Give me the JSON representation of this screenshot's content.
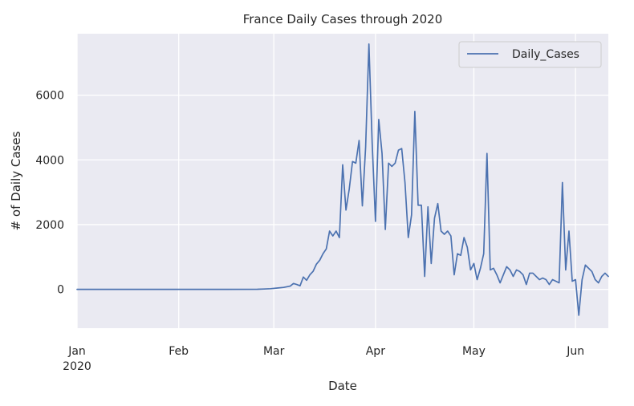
{
  "chart_data": {
    "type": "line",
    "title": "France Daily Cases through 2020",
    "xlabel": "Date",
    "ylabel": "# of Daily Cases",
    "x_range": [
      "2020-01-01",
      "2020-06-11"
    ],
    "ylim": [
      -1200,
      7900
    ],
    "x_ticks": [
      {
        "date": "2020-01-01",
        "label": "Jan",
        "sublabel": "2020"
      },
      {
        "date": "2020-02-01",
        "label": "Feb",
        "sublabel": ""
      },
      {
        "date": "2020-03-01",
        "label": "Mar",
        "sublabel": ""
      },
      {
        "date": "2020-04-01",
        "label": "Apr",
        "sublabel": ""
      },
      {
        "date": "2020-05-01",
        "label": "May",
        "sublabel": ""
      },
      {
        "date": "2020-06-01",
        "label": "Jun",
        "sublabel": ""
      }
    ],
    "y_ticks": [
      0,
      2000,
      4000,
      6000
    ],
    "y_tick_labels": [
      "0",
      "2000",
      "4000",
      "6000"
    ],
    "grid": true,
    "legend_position": "top-right",
    "series": [
      {
        "name": "Daily_Cases",
        "color": "#4c72b0",
        "x": [
          "2020-01-01",
          "2020-01-15",
          "2020-02-01",
          "2020-02-15",
          "2020-02-25",
          "2020-02-27",
          "2020-02-29",
          "2020-03-02",
          "2020-03-04",
          "2020-03-06",
          "2020-03-07",
          "2020-03-08",
          "2020-03-09",
          "2020-03-10",
          "2020-03-11",
          "2020-03-12",
          "2020-03-13",
          "2020-03-14",
          "2020-03-15",
          "2020-03-16",
          "2020-03-17",
          "2020-03-18",
          "2020-03-19",
          "2020-03-20",
          "2020-03-21",
          "2020-03-22",
          "2020-03-23",
          "2020-03-24",
          "2020-03-25",
          "2020-03-26",
          "2020-03-27",
          "2020-03-28",
          "2020-03-29",
          "2020-03-30",
          "2020-03-31",
          "2020-04-01",
          "2020-04-02",
          "2020-04-03",
          "2020-04-04",
          "2020-04-05",
          "2020-04-06",
          "2020-04-07",
          "2020-04-08",
          "2020-04-09",
          "2020-04-10",
          "2020-04-11",
          "2020-04-12",
          "2020-04-13",
          "2020-04-14",
          "2020-04-15",
          "2020-04-16",
          "2020-04-17",
          "2020-04-18",
          "2020-04-19",
          "2020-04-20",
          "2020-04-21",
          "2020-04-22",
          "2020-04-23",
          "2020-04-24",
          "2020-04-25",
          "2020-04-26",
          "2020-04-27",
          "2020-04-28",
          "2020-04-29",
          "2020-04-30",
          "2020-05-01",
          "2020-05-02",
          "2020-05-03",
          "2020-05-04",
          "2020-05-05",
          "2020-05-06",
          "2020-05-07",
          "2020-05-08",
          "2020-05-09",
          "2020-05-10",
          "2020-05-11",
          "2020-05-12",
          "2020-05-13",
          "2020-05-14",
          "2020-05-15",
          "2020-05-16",
          "2020-05-17",
          "2020-05-18",
          "2020-05-19",
          "2020-05-20",
          "2020-05-21",
          "2020-05-22",
          "2020-05-23",
          "2020-05-24",
          "2020-05-25",
          "2020-05-26",
          "2020-05-27",
          "2020-05-28",
          "2020-05-29",
          "2020-05-30",
          "2020-05-31",
          "2020-06-01",
          "2020-06-02",
          "2020-06-03",
          "2020-06-04",
          "2020-06-05",
          "2020-06-06",
          "2020-06-07",
          "2020-06-08",
          "2020-06-09",
          "2020-06-10",
          "2020-06-11"
        ],
        "values": [
          0,
          0,
          0,
          0,
          2,
          10,
          20,
          40,
          60,
          100,
          180,
          150,
          110,
          380,
          280,
          450,
          560,
          780,
          900,
          1100,
          1250,
          1800,
          1650,
          1800,
          1600,
          3850,
          2450,
          3100,
          3950,
          3900,
          4600,
          2580,
          4400,
          7580,
          4500,
          2100,
          5250,
          4200,
          1850,
          3900,
          3800,
          3900,
          4300,
          4350,
          3300,
          1600,
          2300,
          5500,
          2600,
          2600,
          400,
          2550,
          800,
          2200,
          2650,
          1800,
          1700,
          1800,
          1650,
          450,
          1100,
          1050,
          1600,
          1300,
          600,
          800,
          300,
          650,
          1100,
          4200,
          600,
          650,
          450,
          200,
          450,
          700,
          600,
          400,
          600,
          550,
          450,
          150,
          500,
          500,
          400,
          300,
          350,
          300,
          150,
          300,
          250,
          200,
          3300,
          600,
          1800,
          250,
          300,
          -800,
          300,
          750,
          650,
          550,
          300,
          200,
          400,
          500,
          400
        ]
      }
    ]
  }
}
